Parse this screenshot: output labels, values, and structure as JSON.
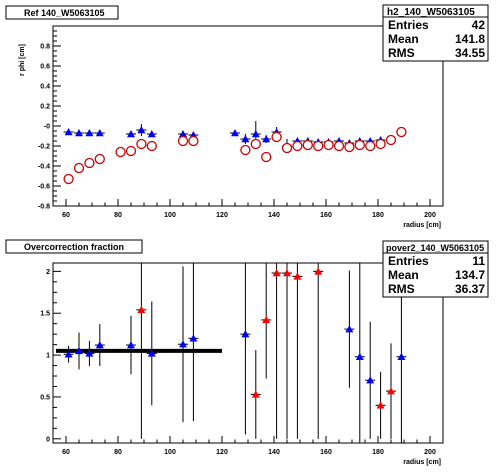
{
  "chart_data": [
    {
      "type": "scatter",
      "title": "Ref 140_W5063105",
      "xlabel": "radius [cm]",
      "ylabel": "r phi [cm]",
      "xlim": [
        55,
        205
      ],
      "ylim": [
        -0.8,
        1.0
      ],
      "xticks": [
        "60",
        "80",
        "100",
        "120",
        "140",
        "160",
        "180",
        "200"
      ],
      "yticks": [
        "-0.8",
        "-0.6",
        "-0.4",
        "-0.2",
        "-0",
        "0.2",
        "0.4",
        "0.6",
        "0.8"
      ],
      "stats": {
        "name": "h2_140_W5063105",
        "rows": [
          [
            "Entries",
            "42"
          ],
          [
            "Mean",
            "141.8"
          ],
          [
            "RMS",
            "34.55"
          ]
        ]
      },
      "series": [
        {
          "marker": "triangle",
          "color": "#0000ff",
          "points": [
            [
              61,
              -0.06,
              0.03
            ],
            [
              65,
              -0.07,
              0.03
            ],
            [
              69,
              -0.07,
              0.03
            ],
            [
              73,
              -0.07,
              0.03
            ],
            [
              85,
              -0.08,
              0.03
            ],
            [
              89,
              -0.04,
              0.06
            ],
            [
              93,
              -0.08,
              0.03
            ],
            [
              105,
              -0.08,
              0.03
            ],
            [
              109,
              -0.09,
              0.03
            ],
            [
              125,
              -0.07,
              0.02
            ],
            [
              129,
              -0.13,
              0.05
            ],
            [
              133,
              -0.08,
              0.13
            ],
            [
              137,
              -0.13,
              0.04
            ],
            [
              141,
              -0.06,
              0.05
            ],
            [
              145,
              -0.2,
              0.07
            ],
            [
              149,
              -0.15,
              0.03
            ],
            [
              153,
              -0.15,
              0.03
            ],
            [
              157,
              -0.16,
              0.03
            ],
            [
              161,
              -0.16,
              0.03
            ],
            [
              165,
              -0.15,
              0.03
            ],
            [
              169,
              -0.17,
              0.03
            ],
            [
              173,
              -0.15,
              0.03
            ],
            [
              177,
              -0.15,
              0.03
            ],
            [
              181,
              -0.14,
              0.03
            ],
            [
              185,
              -0.14,
              0.03
            ],
            [
              189,
              -0.06,
              0.02
            ]
          ]
        },
        {
          "marker": "circle",
          "color": "#cc0000",
          "points": [
            [
              61,
              -0.53,
              0
            ],
            [
              65,
              -0.42,
              0
            ],
            [
              69,
              -0.37,
              0
            ],
            [
              73,
              -0.33,
              0
            ],
            [
              81,
              -0.26,
              0
            ],
            [
              85,
              -0.25,
              0
            ],
            [
              89,
              -0.18,
              0
            ],
            [
              93,
              -0.2,
              0
            ],
            [
              105,
              -0.15,
              0
            ],
            [
              109,
              -0.15,
              0
            ],
            [
              129,
              -0.24,
              0
            ],
            [
              133,
              -0.18,
              0
            ],
            [
              137,
              -0.31,
              0
            ],
            [
              141,
              -0.11,
              0
            ],
            [
              145,
              -0.22,
              0
            ],
            [
              149,
              -0.2,
              0
            ],
            [
              153,
              -0.19,
              0
            ],
            [
              157,
              -0.2,
              0
            ],
            [
              161,
              -0.19,
              0
            ],
            [
              165,
              -0.2,
              0
            ],
            [
              169,
              -0.21,
              0
            ],
            [
              173,
              -0.19,
              0
            ],
            [
              177,
              -0.2,
              0
            ],
            [
              181,
              -0.18,
              0
            ],
            [
              185,
              -0.14,
              0
            ],
            [
              189,
              -0.06,
              0
            ]
          ]
        }
      ]
    },
    {
      "type": "scatter",
      "title": "Overcorrection fraction",
      "xlabel": "radius [cm]",
      "ylabel": "",
      "xlim": [
        55,
        205
      ],
      "ylim": [
        -0.05,
        2.1
      ],
      "xticks": [
        "60",
        "80",
        "100",
        "120",
        "140",
        "160",
        "180",
        "200"
      ],
      "yticks": [
        "0",
        "0.5",
        "1",
        "1.5",
        "2"
      ],
      "stats": {
        "name": "pover2_140_W5063105",
        "rows": [
          [
            "Entries",
            "11"
          ],
          [
            "Mean",
            "134.7"
          ],
          [
            "RMS",
            "36.37"
          ]
        ]
      },
      "reference_line": {
        "x": [
          55,
          120
        ],
        "y": 1.05
      },
      "series": [
        {
          "marker": "triangle",
          "color": "#0000ff",
          "points": [
            [
              61,
              1.01,
              0.1
            ],
            [
              65,
              1.05,
              0.22
            ],
            [
              69,
              1.02,
              0.15
            ],
            [
              73,
              1.12,
              0.25
            ],
            [
              85,
              1.12,
              0.35
            ],
            [
              93,
              1.02,
              0.62
            ],
            [
              105,
              1.13,
              0.93
            ],
            [
              109,
              1.2,
              0.99
            ],
            [
              129,
              1.25,
              1.2
            ],
            [
              169,
              1.31,
              0.7
            ],
            [
              173,
              0.98,
              1.2
            ],
            [
              177,
              0.7,
              0.7
            ],
            [
              189,
              0.98,
              1.1
            ]
          ]
        },
        {
          "marker": "triangle",
          "color": "#ff0000",
          "points": [
            [
              89,
              1.54,
              1.54
            ],
            [
              133,
              0.53,
              0.53
            ],
            [
              137,
              1.42,
              0.7
            ],
            [
              141,
              1.98,
              1.98
            ],
            [
              145,
              1.98,
              1.98
            ],
            [
              149,
              1.94,
              1.94
            ],
            [
              157,
              2.0,
              2.0
            ],
            [
              181,
              0.4,
              0.4
            ],
            [
              185,
              0.57,
              0.57
            ]
          ]
        }
      ]
    }
  ]
}
